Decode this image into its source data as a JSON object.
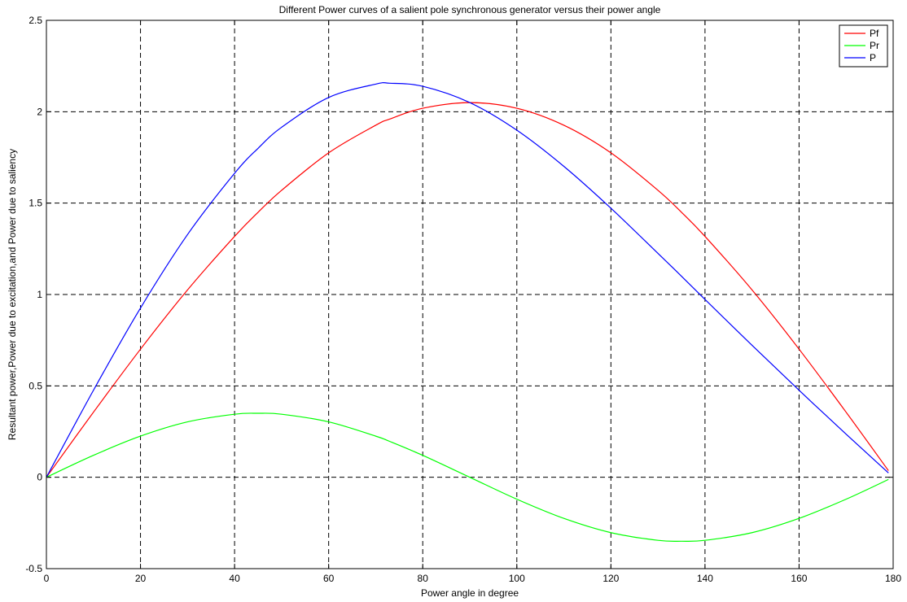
{
  "chart_data": {
    "type": "line",
    "title": "Different Power curves of a salient pole synchronous generator versus their power angle",
    "xlabel": "Power angle in degree",
    "ylabel": "Resultant power,Power due to excitation,and Power due to saliency",
    "xlim": [
      0,
      180
    ],
    "ylim": [
      -0.5,
      2.5
    ],
    "xticks": [
      0,
      20,
      40,
      60,
      80,
      100,
      120,
      140,
      160,
      180
    ],
    "yticks": [
      -0.5,
      0,
      0.5,
      1,
      1.5,
      2,
      2.5
    ],
    "grid": true,
    "legend_position": "top-right",
    "x": [
      0,
      10,
      20,
      30,
      40,
      45,
      50,
      60,
      70,
      73,
      80,
      90,
      100,
      110,
      120,
      130,
      135,
      140,
      150,
      160,
      170,
      179
    ],
    "series": [
      {
        "name": "Pf",
        "color": "#ff0000",
        "values": [
          0,
          0.356,
          0.701,
          1.025,
          1.318,
          1.45,
          1.57,
          1.775,
          1.926,
          1.96,
          2.019,
          2.05,
          2.019,
          1.926,
          1.775,
          1.57,
          1.45,
          1.318,
          1.025,
          0.701,
          0.356,
          0.036
        ]
      },
      {
        "name": "Pr",
        "color": "#00ff00",
        "values": [
          0,
          0.12,
          0.225,
          0.303,
          0.345,
          0.35,
          0.345,
          0.303,
          0.225,
          0.196,
          0.12,
          0,
          -0.12,
          -0.225,
          -0.303,
          -0.345,
          -0.35,
          -0.345,
          -0.303,
          -0.225,
          -0.12,
          -0.012
        ]
      },
      {
        "name": "P",
        "color": "#0000ff",
        "values": [
          0,
          0.476,
          0.926,
          1.328,
          1.663,
          1.8,
          1.915,
          2.078,
          2.151,
          2.156,
          2.139,
          2.05,
          1.899,
          1.701,
          1.472,
          1.225,
          1.1,
          0.973,
          0.722,
          0.476,
          0.236,
          0.024
        ]
      }
    ]
  }
}
